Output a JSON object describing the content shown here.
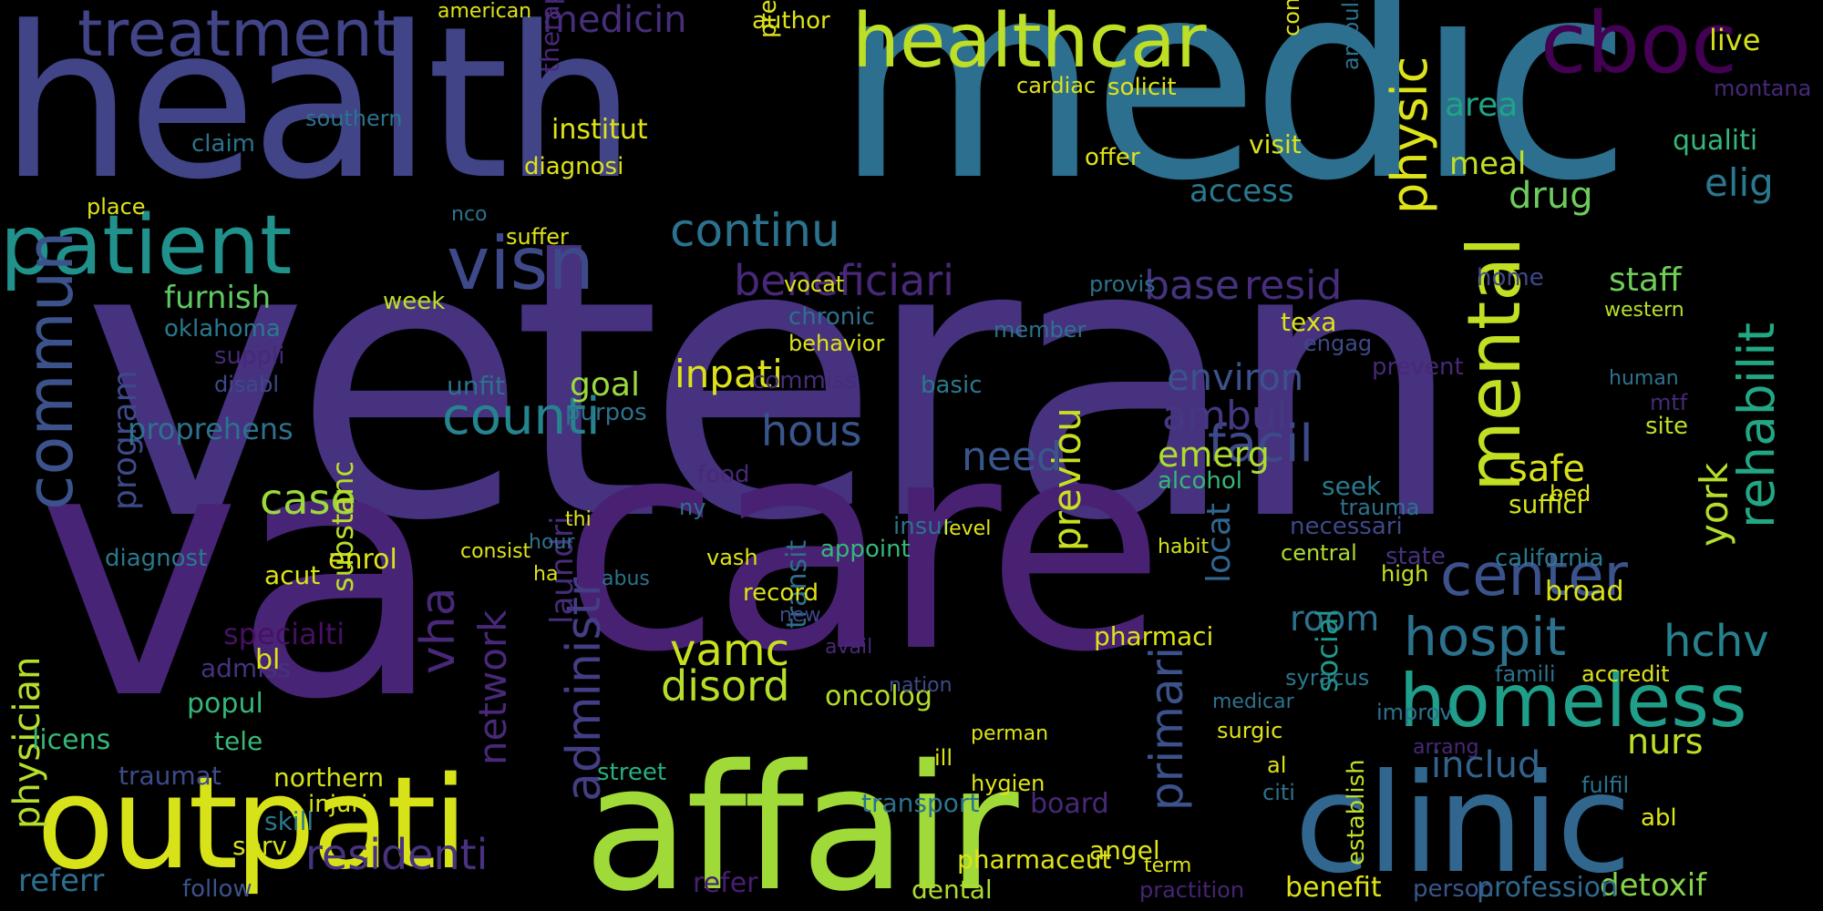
{
  "words": [
    {
      "text": "veteran",
      "color": "#46327e",
      "rot": false
    },
    {
      "text": "va",
      "color": "#482476",
      "rot": false
    },
    {
      "text": "care",
      "color": "#482173",
      "rot": false
    },
    {
      "text": "medic",
      "color": "#2d6f8e",
      "rot": false
    },
    {
      "text": "health",
      "color": "#414487",
      "rot": false
    },
    {
      "text": "affair",
      "color": "#a0da39",
      "rot": false
    },
    {
      "text": "outpati",
      "color": "#d8e219",
      "rot": false
    },
    {
      "text": "clinic",
      "color": "#31668e",
      "rot": false
    },
    {
      "text": "healthcar",
      "color": "#bddf26",
      "rot": false
    },
    {
      "text": "cboc",
      "color": "#440154",
      "rot": false
    },
    {
      "text": "patient",
      "color": "#21918c",
      "rot": false
    },
    {
      "text": "treatment",
      "color": "#414487",
      "rot": false
    },
    {
      "text": "homeless",
      "color": "#1f9e89",
      "rot": false
    },
    {
      "text": "commun",
      "color": "#3b528b",
      "rot": true
    },
    {
      "text": "visn",
      "color": "#3e4989",
      "rot": false
    },
    {
      "text": "mental",
      "color": "#c2df23",
      "rot": true
    },
    {
      "text": "hospit",
      "color": "#2c728e",
      "rot": false
    },
    {
      "text": "center",
      "color": "#3b528b",
      "rot": false
    },
    {
      "text": "administr",
      "color": "#433e85",
      "rot": true
    },
    {
      "text": "primari",
      "color": "#3b528b",
      "rot": true
    },
    {
      "text": "continu",
      "color": "#2c728e",
      "rot": false
    },
    {
      "text": "counti",
      "color": "#25848e",
      "rot": false
    },
    {
      "text": "facil",
      "color": "#3e4989",
      "rot": false
    },
    {
      "text": "rehabilit",
      "color": "#22a785",
      "rot": true
    },
    {
      "text": "beneficiari",
      "color": "#482878",
      "rot": false
    },
    {
      "text": "medicin",
      "color": "#472d7b",
      "rot": false
    },
    {
      "text": "includ",
      "color": "#33638d",
      "rot": false
    },
    {
      "text": "vamc",
      "color": "#c8e020",
      "rot": false
    },
    {
      "text": "hchv",
      "color": "#26828e",
      "rot": false
    },
    {
      "text": "disord",
      "color": "#b5de2b",
      "rot": false
    },
    {
      "text": "residenti",
      "color": "#46327e",
      "rot": false
    },
    {
      "text": "physician",
      "color": "#b5de2b",
      "rot": true
    },
    {
      "text": "hous",
      "color": "#39568c",
      "rot": false
    },
    {
      "text": "previou",
      "color": "#c8e020",
      "rot": true
    },
    {
      "text": "vha",
      "color": "#482878",
      "rot": true
    },
    {
      "text": "base",
      "color": "#46327e",
      "rot": false
    },
    {
      "text": "resid",
      "color": "#472d7b",
      "rot": false
    },
    {
      "text": "staff",
      "color": "#6ece58",
      "rot": false
    },
    {
      "text": "drug",
      "color": "#6ccd5a",
      "rot": false
    },
    {
      "text": "elig",
      "color": "#2a788e",
      "rot": false
    },
    {
      "text": "network",
      "color": "#482878",
      "rot": true
    },
    {
      "text": "case",
      "color": "#9bd93c",
      "rot": false
    },
    {
      "text": "safe",
      "color": "#d8e219",
      "rot": false
    },
    {
      "text": "room",
      "color": "#2c728e",
      "rot": false
    },
    {
      "text": "ambul",
      "color": "#453882",
      "rot": false
    },
    {
      "text": "need",
      "color": "#39568c",
      "rot": false
    },
    {
      "text": "inpati",
      "color": "#dde318",
      "rot": false
    },
    {
      "text": "environ",
      "color": "#3b528b",
      "rot": false
    },
    {
      "text": "emerg",
      "color": "#addc30",
      "rot": false
    },
    {
      "text": "nurs",
      "color": "#bddf26",
      "rot": false
    },
    {
      "text": "york",
      "color": "#b5de2b",
      "rot": true
    },
    {
      "text": "live",
      "color": "#d2e21b",
      "rot": false
    },
    {
      "text": "qualiti",
      "color": "#35b779",
      "rot": false
    },
    {
      "text": "meal",
      "color": "#c0df25",
      "rot": false
    },
    {
      "text": "area",
      "color": "#20a386",
      "rot": false
    },
    {
      "text": "access",
      "color": "#2a788e",
      "rot": false
    },
    {
      "text": "goal",
      "color": "#9bd93c",
      "rot": false
    },
    {
      "text": "furnish",
      "color": "#5ec962",
      "rot": false
    },
    {
      "text": "substanc",
      "color": "#b8de29",
      "rot": true
    },
    {
      "text": "program",
      "color": "#3e4989",
      "rot": true
    },
    {
      "text": "proprehens",
      "color": "#2c728e",
      "rot": false
    },
    {
      "text": "refer",
      "color": "#481f70",
      "rot": false
    },
    {
      "text": "referr",
      "color": "#2e6e8e",
      "rot": false
    },
    {
      "text": "street",
      "color": "#29af7f",
      "rot": false
    },
    {
      "text": "transport",
      "color": "#2c728e",
      "rot": false
    },
    {
      "text": "board",
      "color": "#482878",
      "rot": false
    },
    {
      "text": "pharmaci",
      "color": "#dde318",
      "rot": false
    },
    {
      "text": "specialti",
      "color": "#471063",
      "rot": false
    },
    {
      "text": "oncolog",
      "color": "#b5de2b",
      "rot": false
    },
    {
      "text": "laundri",
      "color": "#472c7a",
      "rot": true
    },
    {
      "text": "transit",
      "color": "#2e6e8e",
      "rot": true
    },
    {
      "text": "locat",
      "color": "#31668e",
      "rot": true
    },
    {
      "text": "social",
      "color": "#1f9a8a",
      "rot": true
    },
    {
      "text": "dental",
      "color": "#addc30",
      "rot": false
    },
    {
      "text": "detoxif",
      "color": "#84d44b",
      "rot": false
    },
    {
      "text": "benefit",
      "color": "#dde318",
      "rot": false
    },
    {
      "text": "profession",
      "color": "#31688e",
      "rot": false
    },
    {
      "text": "person",
      "color": "#39568c",
      "rot": false
    },
    {
      "text": "pharmaceut",
      "color": "#dde318",
      "rot": false
    },
    {
      "text": "practition",
      "color": "#482475",
      "rot": false
    },
    {
      "text": "serv",
      "color": "#d5e21a",
      "rot": false
    },
    {
      "text": "follow",
      "color": "#3b528b",
      "rot": false
    },
    {
      "text": "skill",
      "color": "#2a788e",
      "rot": false
    },
    {
      "text": "injuri",
      "color": "#d8e219",
      "rot": false
    },
    {
      "text": "northern",
      "color": "#d2e21b",
      "rot": false
    },
    {
      "text": "traumat",
      "color": "#3e4a89",
      "rot": false
    },
    {
      "text": "licens",
      "color": "#35b779",
      "rot": false
    },
    {
      "text": "popul",
      "color": "#35b779",
      "rot": false
    },
    {
      "text": "tele",
      "color": "#38b977",
      "rot": false
    },
    {
      "text": "admiss",
      "color": "#46327e",
      "rot": false
    },
    {
      "text": "bl",
      "color": "#dde318",
      "rot": false
    },
    {
      "text": "enrol",
      "color": "#dde318",
      "rot": false
    },
    {
      "text": "diagnost",
      "color": "#2a788e",
      "rot": false
    },
    {
      "text": "acut",
      "color": "#dde318",
      "rot": false
    },
    {
      "text": "week",
      "color": "#bddf26",
      "rot": false
    },
    {
      "text": "oklahoma",
      "color": "#2a788e",
      "rot": false
    },
    {
      "text": "suppli",
      "color": "#482878",
      "rot": false
    },
    {
      "text": "disabl",
      "color": "#3e4989",
      "rot": false
    },
    {
      "text": "unfit",
      "color": "#2d708e",
      "rot": false
    },
    {
      "text": "purpos",
      "color": "#2c728e",
      "rot": false
    },
    {
      "text": "commiss",
      "color": "#472d7b",
      "rot": false
    },
    {
      "text": "chronic",
      "color": "#2d708e",
      "rot": false
    },
    {
      "text": "basic",
      "color": "#2a788e",
      "rot": false
    },
    {
      "text": "member",
      "color": "#2c728e",
      "rot": false
    },
    {
      "text": "provis",
      "color": "#2c728e",
      "rot": false
    },
    {
      "text": "texa",
      "color": "#dde318",
      "rot": false
    },
    {
      "text": "engag",
      "color": "#3e4989",
      "rot": false
    },
    {
      "text": "prevent",
      "color": "#482878",
      "rot": false
    },
    {
      "text": "home",
      "color": "#3e4989",
      "rot": false
    },
    {
      "text": "western",
      "color": "#b5de2b",
      "rot": false
    },
    {
      "text": "human",
      "color": "#2c728e",
      "rot": false
    },
    {
      "text": "site",
      "color": "#bddf26",
      "rot": false
    },
    {
      "text": "mtf",
      "color": "#482878",
      "rot": false
    },
    {
      "text": "bed",
      "color": "#dde318",
      "rot": false
    },
    {
      "text": "suffici",
      "color": "#d2e21b",
      "rot": false
    },
    {
      "text": "seek",
      "color": "#2a788e",
      "rot": false
    },
    {
      "text": "trauma",
      "color": "#2c728e",
      "rot": false
    },
    {
      "text": "necessari",
      "color": "#3e4989",
      "rot": false
    },
    {
      "text": "state",
      "color": "#46327e",
      "rot": false
    },
    {
      "text": "california",
      "color": "#2a788e",
      "rot": false
    },
    {
      "text": "alcohol",
      "color": "#35b779",
      "rot": false
    },
    {
      "text": "habit",
      "color": "#d2e21b",
      "rot": false
    },
    {
      "text": "central",
      "color": "#addc30",
      "rot": false
    },
    {
      "text": "high",
      "color": "#c8e020",
      "rot": false
    },
    {
      "text": "broad",
      "color": "#dde318",
      "rot": false
    },
    {
      "text": "accredit",
      "color": "#dde318",
      "rot": false
    },
    {
      "text": "famili",
      "color": "#2c728e",
      "rot": false
    },
    {
      "text": "improv",
      "color": "#2c728e",
      "rot": false
    },
    {
      "text": "arrang",
      "color": "#482878",
      "rot": false
    },
    {
      "text": "fulfil",
      "color": "#2c728e",
      "rot": false
    },
    {
      "text": "abl",
      "color": "#dde318",
      "rot": false
    },
    {
      "text": "citi",
      "color": "#2c728e",
      "rot": false
    },
    {
      "text": "al",
      "color": "#dde318",
      "rot": false
    },
    {
      "text": "surgic",
      "color": "#dde318",
      "rot": false
    },
    {
      "text": "medicar",
      "color": "#2c728e",
      "rot": false
    },
    {
      "text": "establish",
      "color": "#bddf26",
      "rot": true
    },
    {
      "text": "syracus",
      "color": "#2a788e",
      "rot": false
    },
    {
      "text": "nation",
      "color": "#3e4989",
      "rot": false
    },
    {
      "text": "hygien",
      "color": "#dde318",
      "rot": false
    },
    {
      "text": "perman",
      "color": "#dde318",
      "rot": false
    },
    {
      "text": "term",
      "color": "#dde318",
      "rot": false
    },
    {
      "text": "angel",
      "color": "#dde318",
      "rot": false
    },
    {
      "text": "ill",
      "color": "#dde318",
      "rot": false
    },
    {
      "text": "insur",
      "color": "#2c728e",
      "rot": false
    },
    {
      "text": "level",
      "color": "#dde318",
      "rot": false
    },
    {
      "text": "record",
      "color": "#dde318",
      "rot": false
    },
    {
      "text": "new",
      "color": "#3e4989",
      "rot": false
    },
    {
      "text": "appoint",
      "color": "#35b779",
      "rot": false
    },
    {
      "text": "food",
      "color": "#482878",
      "rot": false
    },
    {
      "text": "ny",
      "color": "#2c728e",
      "rot": false
    },
    {
      "text": "vash",
      "color": "#dde318",
      "rot": false
    },
    {
      "text": "hour",
      "color": "#2c728e",
      "rot": false
    },
    {
      "text": "consist",
      "color": "#dde318",
      "rot": false
    },
    {
      "text": "thi",
      "color": "#dde318",
      "rot": false
    },
    {
      "text": "ha",
      "color": "#dde318",
      "rot": false
    },
    {
      "text": "abus",
      "color": "#2c728e",
      "rot": false
    },
    {
      "text": "avail",
      "color": "#482878",
      "rot": false
    },
    {
      "text": "vocat",
      "color": "#dde318",
      "rot": false
    },
    {
      "text": "behavior",
      "color": "#dde318",
      "rot": false
    },
    {
      "text": "institut",
      "color": "#dde318",
      "rot": false
    },
    {
      "text": "therapeut",
      "color": "#482878",
      "rot": true
    },
    {
      "text": "diagnosi",
      "color": "#dde318",
      "rot": false
    },
    {
      "text": "claim",
      "color": "#2c728e",
      "rot": false
    },
    {
      "text": "place",
      "color": "#dde318",
      "rot": false
    },
    {
      "text": "nco",
      "color": "#2c728e",
      "rot": false
    },
    {
      "text": "suffer",
      "color": "#dde318",
      "rot": false
    },
    {
      "text": "physic",
      "color": "#dde318",
      "rot": false
    },
    {
      "text": "visit",
      "color": "#dde318",
      "rot": false
    },
    {
      "text": "offer",
      "color": "#dde318",
      "rot": false
    },
    {
      "text": "solicit",
      "color": "#dde318",
      "rot": false
    },
    {
      "text": "cardiac",
      "color": "#dde318",
      "rot": false
    },
    {
      "text": "author",
      "color": "#dde318",
      "rot": false
    },
    {
      "text": "prescript",
      "color": "#dde318",
      "rot": true
    },
    {
      "text": "consult",
      "color": "#dde318",
      "rot": true
    },
    {
      "text": "ambulatori",
      "color": "#2c728e",
      "rot": true
    },
    {
      "text": "montana",
      "color": "#482878",
      "rot": false
    },
    {
      "text": "american",
      "color": "#dde318",
      "rot": false
    },
    {
      "text": "southern",
      "color": "#2c728e",
      "rot": false
    }
  ]
}
